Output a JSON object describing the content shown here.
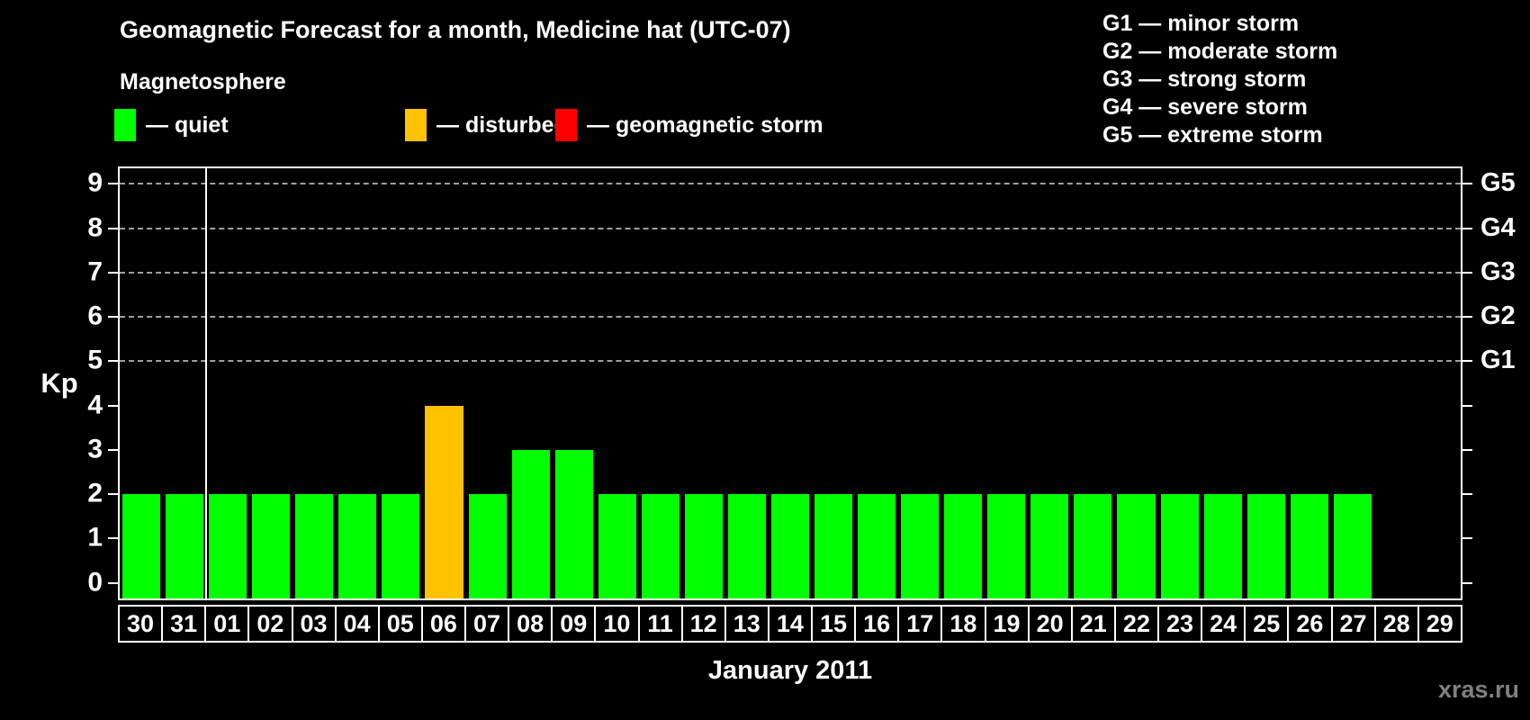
{
  "header": {
    "title": "Geomagnetic Forecast for a month, Medicine hat (UTC-07)"
  },
  "legend": {
    "heading": "Magnetosphere",
    "items": [
      {
        "name": "quiet",
        "label": "— quiet",
        "color": "#00ff00"
      },
      {
        "name": "disturbed",
        "label": "— disturbed",
        "color": "#ffc200"
      },
      {
        "name": "storm",
        "label": "— geomagnetic storm",
        "color": "#ff0000"
      }
    ]
  },
  "storm_scale": [
    "G1 — minor storm",
    "G2 — moderate storm",
    "G3 — strong storm",
    "G4 — severe storm",
    "G5 — extreme storm"
  ],
  "watermark": "xras.ru",
  "chart_data": {
    "type": "bar",
    "title": "Geomagnetic Forecast for a month, Medicine hat (UTC-07)",
    "xlabel": "January 2011",
    "ylabel": "Kp",
    "ylim": [
      0,
      9
    ],
    "yticks": [
      0,
      1,
      2,
      3,
      4,
      5,
      6,
      7,
      8,
      9
    ],
    "gridlines_at": [
      5,
      6,
      7,
      8,
      9
    ],
    "grid": "dashed horizontal at storm levels only",
    "right_axis": [
      {
        "kp": 5,
        "label": "G1"
      },
      {
        "kp": 6,
        "label": "G2"
      },
      {
        "kp": 7,
        "label": "G3"
      },
      {
        "kp": 8,
        "label": "G4"
      },
      {
        "kp": 9,
        "label": "G5"
      }
    ],
    "month_separator_after_index": 2,
    "categories": [
      "30",
      "31",
      "01",
      "02",
      "03",
      "04",
      "05",
      "06",
      "07",
      "08",
      "09",
      "10",
      "11",
      "12",
      "13",
      "14",
      "15",
      "16",
      "17",
      "18",
      "19",
      "20",
      "21",
      "22",
      "23",
      "24",
      "25",
      "26",
      "27",
      "28",
      "29"
    ],
    "values": [
      2,
      2,
      2,
      2,
      2,
      2,
      2,
      4,
      2,
      3,
      3,
      2,
      2,
      2,
      2,
      2,
      2,
      2,
      2,
      2,
      2,
      2,
      2,
      2,
      2,
      2,
      2,
      2,
      2,
      null,
      null
    ],
    "statuses": [
      "quiet",
      "quiet",
      "quiet",
      "quiet",
      "quiet",
      "quiet",
      "quiet",
      "disturbed",
      "quiet",
      "quiet",
      "quiet",
      "quiet",
      "quiet",
      "quiet",
      "quiet",
      "quiet",
      "quiet",
      "quiet",
      "quiet",
      "quiet",
      "quiet",
      "quiet",
      "quiet",
      "quiet",
      "quiet",
      "quiet",
      "quiet",
      "quiet",
      "quiet",
      null,
      null
    ]
  }
}
